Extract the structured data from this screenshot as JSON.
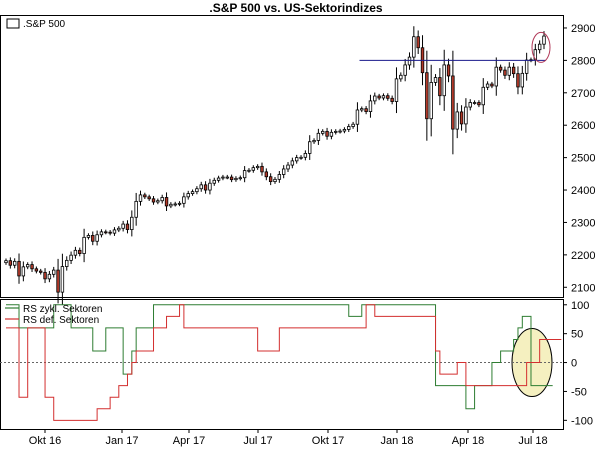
{
  "chart_title": ".S&P 500 vs. US-Sektorindizes",
  "colors": {
    "bull_body": "#ffffff",
    "bear_body": "#b23a2a",
    "candle_outline": "#000000",
    "resistance_line": "#1a1a8c",
    "rs_cyclical": "#2e7d32",
    "rs_defensive": "#d32f2f",
    "zero_line": "#666666",
    "circle_top": "#b23a5a",
    "circle_bottom": "#000000",
    "highlight_fill": "#f5f0c0",
    "grid": "#d9d9d9",
    "frame": "#000000"
  },
  "chart_data": [
    {
      "type": "candlestick",
      "title": ".S&P 500 vs. US-Sektorindizes",
      "legend": [
        ".S&P 500"
      ],
      "x_tick_labels": [
        "Okt 16",
        "Jan 17",
        "Apr 17",
        "Jul 17",
        "Okt 17",
        "Jan 18",
        "Apr 18",
        "Jul 18"
      ],
      "y_tick_labels": [
        "2100",
        "2200",
        "2300",
        "2400",
        "2500",
        "2600",
        "2700",
        "2800",
        "2900"
      ],
      "ylim": [
        2070,
        2940
      ],
      "weekly_closes": [
        2182,
        2168,
        2180,
        2135,
        2163,
        2170,
        2157,
        2150,
        2146,
        2126,
        2140,
        2153,
        2085,
        2164,
        2183,
        2199,
        2214,
        2204,
        2254,
        2260,
        2242,
        2262,
        2271,
        2270,
        2267,
        2277,
        2282,
        2295,
        2278,
        2316,
        2365,
        2385,
        2379,
        2373,
        2363,
        2367,
        2377,
        2351,
        2356,
        2357,
        2359,
        2379,
        2389,
        2395,
        2404,
        2416,
        2400,
        2421,
        2430,
        2437,
        2440,
        2440,
        2432,
        2436,
        2438,
        2460,
        2461,
        2469,
        2473,
        2456,
        2441,
        2426,
        2433,
        2448,
        2465,
        2477,
        2490,
        2500,
        2501,
        2513,
        2549,
        2553,
        2575,
        2581,
        2566,
        2578,
        2581,
        2582,
        2587,
        2596,
        2603,
        2647,
        2651,
        2642,
        2675,
        2690,
        2684,
        2691,
        2683,
        2673,
        2743,
        2754,
        2786,
        2810,
        2873,
        2839,
        2762,
        2620,
        2732,
        2747,
        2691,
        2786,
        2752,
        2588,
        2641,
        2604,
        2656,
        2670,
        2670,
        2663,
        2717,
        2727,
        2721,
        2779,
        2770,
        2754,
        2779,
        2759,
        2718,
        2760,
        2801,
        2802,
        2833,
        2850,
        2875
      ],
      "resistance_level": 2800
    },
    {
      "type": "step-line",
      "legend": [
        "RS zykl. Sektoren",
        "RS def. Sektoren"
      ],
      "x_tick_labels": [
        "Okt 16",
        "Jan 17",
        "Apr 17",
        "Jul 17",
        "Okt 17",
        "Jan 18",
        "Apr 18",
        "Jul 18"
      ],
      "y_tick_labels": [
        "100",
        "50",
        "0",
        "-50",
        "-100"
      ],
      "ylim": [
        -115,
        110
      ],
      "series": [
        {
          "name": "RS zykl. Sektoren",
          "values": [
            100,
            100,
            100,
            60,
            60,
            60,
            60,
            60,
            60,
            60,
            60,
            100,
            100,
            100,
            100,
            60,
            60,
            60,
            60,
            60,
            20,
            20,
            20,
            60,
            60,
            60,
            60,
            -20,
            -20,
            20,
            60,
            60,
            60,
            60,
            100,
            100,
            100,
            100,
            100,
            100,
            100,
            100,
            100,
            100,
            100,
            100,
            100,
            100,
            100,
            100,
            100,
            100,
            100,
            100,
            100,
            100,
            100,
            100,
            100,
            100,
            100,
            100,
            100,
            100,
            100,
            100,
            100,
            100,
            100,
            100,
            100,
            100,
            100,
            100,
            100,
            100,
            100,
            100,
            100,
            80,
            80,
            80,
            100,
            100,
            100,
            100,
            100,
            100,
            100,
            100,
            100,
            100,
            100,
            100,
            100,
            100,
            100,
            100,
            100,
            -40,
            -40,
            -40,
            -40,
            -40,
            -40,
            -40,
            -80,
            -80,
            -40,
            -40,
            -40,
            -40,
            0,
            0,
            20,
            20,
            20,
            40,
            60,
            80,
            80,
            -40,
            -40,
            -40,
            -40,
            -40
          ],
          "note": "RS zykl. Sektoren"
        },
        {
          "name": "RS def. Sektoren",
          "values": [
            60,
            60,
            60,
            -60,
            -60,
            60,
            60,
            60,
            60,
            -60,
            -60,
            -100,
            -100,
            -100,
            -100,
            -100,
            -100,
            -100,
            -100,
            -100,
            -100,
            -80,
            -80,
            -80,
            -60,
            -60,
            -40,
            -40,
            -20,
            0,
            20,
            20,
            20,
            20,
            60,
            60,
            60,
            80,
            80,
            80,
            100,
            60,
            60,
            60,
            60,
            60,
            60,
            60,
            60,
            60,
            60,
            60,
            60,
            60,
            60,
            60,
            60,
            60,
            20,
            20,
            20,
            20,
            20,
            60,
            60,
            60,
            60,
            60,
            60,
            60,
            60,
            60,
            60,
            60,
            60,
            60,
            60,
            60,
            60,
            60,
            60,
            60,
            60,
            100,
            100,
            80,
            80,
            80,
            80,
            80,
            80,
            80,
            80,
            80,
            80,
            80,
            80,
            80,
            80,
            20,
            -20,
            -20,
            -20,
            -20,
            0,
            0,
            -40,
            -40,
            -40,
            -40,
            -40,
            -40,
            -40,
            -40,
            -40,
            -40,
            -40,
            -40,
            -40,
            -40,
            0,
            0,
            0,
            40,
            40,
            40,
            40,
            40
          ],
          "note": "RS def. Sektoren"
        }
      ]
    }
  ]
}
